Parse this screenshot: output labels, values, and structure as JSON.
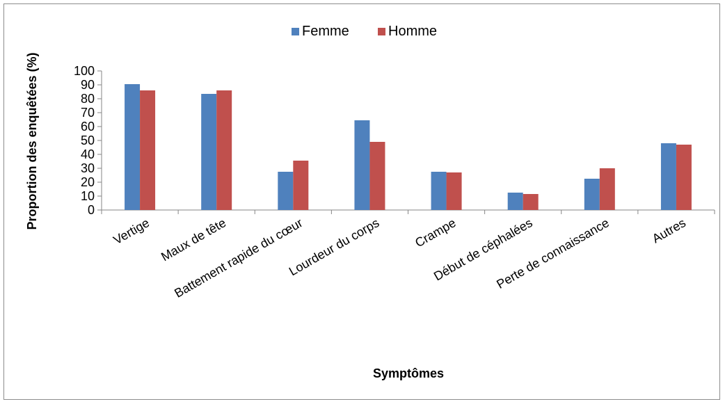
{
  "chart_data": {
    "type": "bar",
    "categories": [
      "Vertige",
      "Maux de tête",
      "Battement rapide du cœur",
      "Lourdeur du corps",
      "Crampe",
      "Début de céphalées",
      "Perte de connaissance",
      "Autres"
    ],
    "series": [
      {
        "name": "Femme",
        "color": "#4f81bd",
        "values": [
          90.5,
          83.5,
          27.5,
          64.5,
          27.5,
          12.5,
          22.5,
          48
        ]
      },
      {
        "name": "Homme",
        "color": "#c0504d",
        "values": [
          86,
          86,
          35.5,
          49,
          27,
          11.5,
          30,
          47
        ]
      }
    ],
    "title": "",
    "xlabel": "Symptômes",
    "ylabel": "Proportion des enquêtées (%)",
    "ylim": [
      0,
      100
    ],
    "yticks": [
      "0",
      "10",
      "20",
      "30",
      "40",
      "50",
      "60",
      "70",
      "80",
      "90",
      "100"
    ],
    "grid": false,
    "legend_position": "top-center"
  }
}
